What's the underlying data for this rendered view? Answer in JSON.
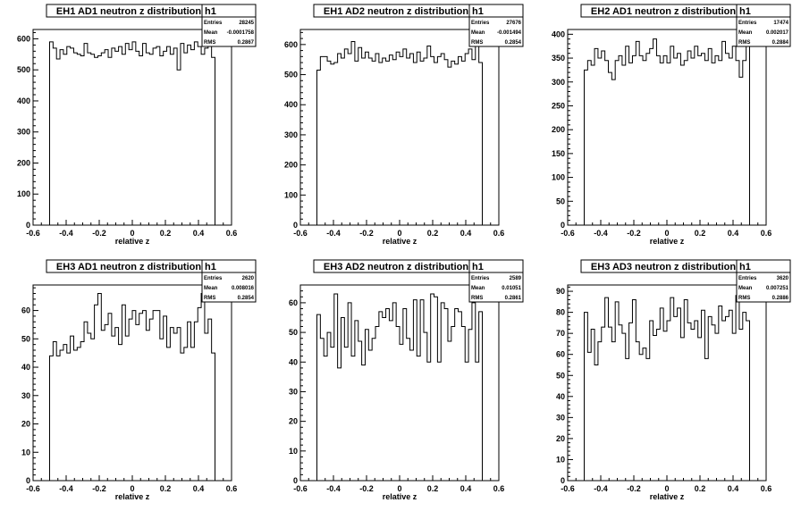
{
  "chart_data": [
    {
      "type": "histogram",
      "title": "EH1 AD1 neutron z distribution",
      "xlabel": "relative z",
      "ylabel": "",
      "xlim": [
        -0.6,
        0.6
      ],
      "ylim": [
        0,
        630
      ],
      "x_ticks": [
        "-0.6",
        "-0.4",
        "-0.2",
        "0",
        "0.2",
        "0.4",
        "0.6"
      ],
      "y_ticks": [
        "0",
        "100",
        "200",
        "300",
        "400",
        "500",
        "600"
      ],
      "stats": {
        "name": "h1",
        "entries": "28245",
        "mean": "-0.0001758",
        "rms": "0.2867"
      },
      "bin_range": [
        -0.5,
        0.5
      ],
      "values": [
        590,
        570,
        535,
        565,
        550,
        575,
        570,
        555,
        550,
        545,
        585,
        555,
        550,
        540,
        545,
        555,
        565,
        540,
        570,
        560,
        575,
        550,
        585,
        565,
        590,
        560,
        545,
        585,
        555,
        550,
        570,
        575,
        545,
        560,
        575,
        550,
        570,
        500,
        585,
        555,
        580,
        565,
        590,
        575,
        550,
        570,
        580,
        540
      ]
    },
    {
      "type": "histogram",
      "title": "EH1 AD2 neutron z distribution",
      "xlabel": "relative z",
      "ylabel": "",
      "xlim": [
        -0.6,
        0.6
      ],
      "ylim": [
        0,
        650
      ],
      "x_ticks": [
        "-0.6",
        "-0.4",
        "-0.2",
        "0",
        "0.2",
        "0.4",
        "0.6"
      ],
      "y_ticks": [
        "0",
        "100",
        "200",
        "300",
        "400",
        "500",
        "600"
      ],
      "stats": {
        "name": "h1",
        "entries": "27676",
        "mean": "-0.001494",
        "rms": "0.2854"
      },
      "bin_range": [
        -0.5,
        0.5
      ],
      "values": [
        515,
        560,
        560,
        545,
        535,
        540,
        570,
        555,
        585,
        570,
        610,
        545,
        590,
        555,
        575,
        555,
        545,
        570,
        540,
        555,
        545,
        565,
        550,
        575,
        560,
        585,
        555,
        570,
        540,
        575,
        545,
        555,
        595,
        560,
        540,
        560,
        570,
        550,
        525,
        545,
        535,
        560,
        545,
        570,
        585,
        550,
        600,
        540
      ]
    },
    {
      "type": "histogram",
      "title": "EH2 AD1 neutron z distribution",
      "xlabel": "relative z",
      "ylabel": "",
      "xlim": [
        -0.6,
        0.6
      ],
      "ylim": [
        0,
        410
      ],
      "x_ticks": [
        "-0.6",
        "-0.4",
        "-0.2",
        "0",
        "0.2",
        "0.4",
        "0.6"
      ],
      "y_ticks": [
        "0",
        "50",
        "100",
        "150",
        "200",
        "250",
        "300",
        "350",
        "400"
      ],
      "stats": {
        "name": "h1",
        "entries": "17474",
        "mean": "0.002017",
        "rms": "0.2884"
      },
      "bin_range": [
        -0.5,
        0.5
      ],
      "values": [
        325,
        345,
        335,
        370,
        350,
        365,
        345,
        320,
        305,
        345,
        355,
        335,
        375,
        340,
        355,
        385,
        355,
        345,
        360,
        370,
        390,
        355,
        340,
        355,
        340,
        375,
        350,
        360,
        335,
        345,
        365,
        350,
        375,
        355,
        360,
        345,
        370,
        340,
        355,
        345,
        385,
        360,
        350,
        375,
        345,
        310,
        345,
        390
      ]
    },
    {
      "type": "histogram",
      "title": "EH3 AD1 neutron z distribution",
      "xlabel": "relative z",
      "ylabel": "",
      "xlim": [
        -0.6,
        0.6
      ],
      "ylim": [
        0,
        69
      ],
      "x_ticks": [
        "-0.6",
        "-0.4",
        "-0.2",
        "0",
        "0.2",
        "0.4",
        "0.6"
      ],
      "y_ticks": [
        "0",
        "10",
        "20",
        "30",
        "40",
        "50",
        "60"
      ],
      "stats": {
        "name": "h1",
        "entries": "2620",
        "mean": "0.008016",
        "rms": "0.2854"
      },
      "bin_range": [
        -0.5,
        0.5
      ],
      "values": [
        44,
        49,
        44,
        46,
        48,
        45,
        51,
        46,
        47,
        49,
        56,
        52,
        50,
        62,
        66,
        53,
        55,
        59,
        51,
        54,
        48,
        62,
        51,
        57,
        60,
        55,
        59,
        60,
        53,
        57,
        60,
        60,
        50,
        58,
        47,
        54,
        52,
        54,
        45,
        47,
        56,
        47,
        56,
        61,
        66,
        52,
        57,
        45
      ]
    },
    {
      "type": "histogram",
      "title": "EH3 AD2 neutron z distribution",
      "xlabel": "relative z",
      "ylabel": "",
      "xlim": [
        -0.6,
        0.6
      ],
      "ylim": [
        0,
        66
      ],
      "x_ticks": [
        "-0.6",
        "-0.4",
        "-0.2",
        "0",
        "0.2",
        "0.4",
        "0.6"
      ],
      "y_ticks": [
        "0",
        "10",
        "20",
        "30",
        "40",
        "50",
        "60"
      ],
      "stats": {
        "name": "h1",
        "entries": "2589",
        "mean": "0.01051",
        "rms": "0.2861"
      },
      "bin_range": [
        -0.5,
        0.5
      ],
      "values": [
        56,
        48,
        42,
        50,
        45,
        63,
        38,
        55,
        45,
        60,
        42,
        54,
        47,
        39,
        51,
        44,
        48,
        52,
        57,
        55,
        58,
        54,
        60,
        52,
        46,
        58,
        48,
        44,
        61,
        42,
        61,
        50,
        40,
        63,
        62,
        40,
        60,
        58,
        47,
        52,
        58,
        57,
        52,
        40,
        51,
        60,
        40,
        57
      ]
    },
    {
      "type": "histogram",
      "title": "EH3 AD3 neutron z distribution",
      "xlabel": "relative z",
      "ylabel": "",
      "xlim": [
        -0.6,
        0.6
      ],
      "ylim": [
        0,
        93
      ],
      "x_ticks": [
        "-0.6",
        "-0.4",
        "-0.2",
        "0",
        "0.2",
        "0.4",
        "0.6"
      ],
      "y_ticks": [
        "0",
        "10",
        "20",
        "30",
        "40",
        "50",
        "60",
        "70",
        "80",
        "90"
      ],
      "stats": {
        "name": "h1",
        "entries": "3620",
        "mean": "0.007251",
        "rms": "0.2886"
      },
      "bin_range": [
        -0.5,
        0.5
      ],
      "values": [
        80,
        61,
        72,
        55,
        66,
        73,
        87,
        73,
        66,
        85,
        74,
        70,
        58,
        75,
        86,
        66,
        60,
        63,
        58,
        76,
        69,
        72,
        82,
        71,
        76,
        87,
        78,
        82,
        68,
        86,
        75,
        72,
        76,
        68,
        81,
        58,
        78,
        74,
        70,
        83,
        76,
        78,
        81,
        70,
        88,
        72,
        80,
        76
      ]
    }
  ]
}
